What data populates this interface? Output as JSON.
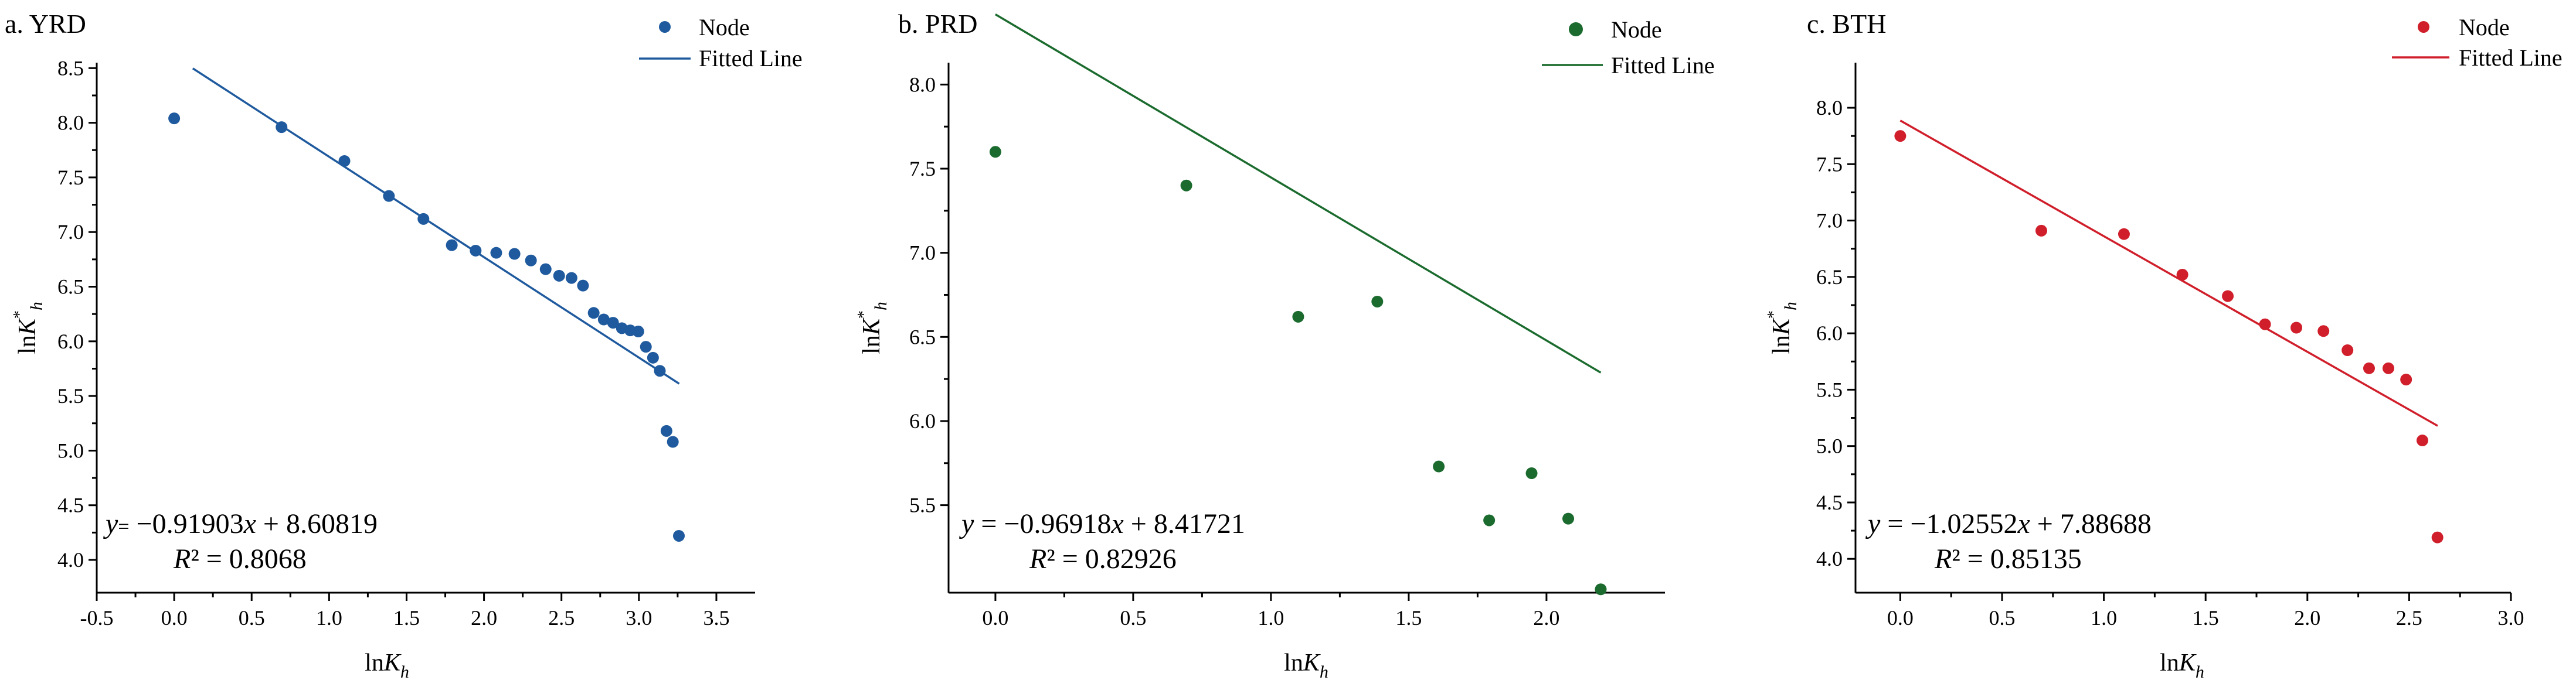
{
  "chart_data": [
    {
      "type": "scatter",
      "title": "a. YRD",
      "color": "#1f5a9e",
      "xlabel": "lnK_h",
      "ylabel": "lnK*_h",
      "xlim": [
        -0.5,
        3.75
      ],
      "ylim": [
        3.7,
        8.55
      ],
      "xticks": [
        "-0.5",
        "0.0",
        "0.5",
        "1.0",
        "1.5",
        "2.0",
        "2.5",
        "3.0",
        "3.5"
      ],
      "yticks": [
        "4.0",
        "4.5",
        "5.0",
        "5.5",
        "6.0",
        "6.5",
        "7.0",
        "7.5",
        "8.0",
        "8.5"
      ],
      "legend": {
        "node": "Node",
        "fitted": "Fitted Line"
      },
      "legend_position": "top-right",
      "series": [
        {
          "name": "Node",
          "x": [
            0.0,
            0.693,
            1.099,
            1.386,
            1.609,
            1.792,
            1.946,
            2.079,
            2.197,
            2.303,
            2.398,
            2.485,
            2.565,
            2.639,
            2.708,
            2.773,
            2.833,
            2.89,
            2.944,
            2.996,
            3.045,
            3.091,
            3.135,
            3.178,
            3.219,
            3.258
          ],
          "y": [
            8.04,
            7.96,
            7.65,
            7.33,
            7.12,
            6.88,
            6.83,
            6.81,
            6.8,
            6.74,
            6.66,
            6.6,
            6.58,
            6.51,
            6.26,
            6.2,
            6.17,
            6.12,
            6.1,
            6.09,
            5.95,
            5.85,
            5.73,
            5.18,
            5.08,
            4.22
          ]
        }
      ],
      "fit": {
        "slope": -0.91903,
        "intercept": 8.60819,
        "x_range": [
          0.12,
          3.26
        ]
      },
      "equation": {
        "y": "y",
        "eq": "=",
        "rhs_prefix": " −0.91903",
        "x": "x",
        "rhs_suffix": " + 8.60819",
        "r": "R",
        "r2": "² = 0.8068"
      }
    },
    {
      "type": "scatter",
      "title": "b. PRD",
      "color": "#1b6b2e",
      "xlabel": "lnK_h",
      "ylabel": "lnK*_h",
      "xlim": [
        -0.17,
        2.43
      ],
      "ylim": [
        4.98,
        8.13
      ],
      "xticks": [
        "0.0",
        "0.5",
        "1.0",
        "1.5",
        "2.0"
      ],
      "yticks": [
        "5.5",
        "6.0",
        "6.5",
        "7.0",
        "7.5",
        "8.0"
      ],
      "legend": {
        "node": "Node",
        "fitted": "Fitted Line"
      },
      "legend_position": "top-right",
      "series": [
        {
          "name": "Node",
          "x": [
            0.0,
            0.693,
            1.099,
            1.386,
            1.609,
            1.792,
            1.946,
            2.079,
            2.197
          ],
          "y": [
            7.6,
            7.4,
            6.62,
            6.71,
            5.73,
            5.41,
            5.69,
            5.42,
            5.0
          ]
        }
      ],
      "fit": {
        "slope": -0.96918,
        "intercept": 8.41721,
        "x_range": [
          0.0,
          2.197
        ]
      },
      "equation": {
        "y": "y",
        "eq": " =",
        "rhs_prefix": " −0.96918",
        "x": "x",
        "rhs_suffix": " + 8.41721",
        "r": "R",
        "r2": "² = 0.82926"
      }
    },
    {
      "type": "scatter",
      "title": "c. BTH",
      "color": "#d01f2b",
      "xlabel": "lnK_h",
      "ylabel": "lnK*_h",
      "xlim": [
        -0.22,
        3.0
      ],
      "ylim": [
        3.7,
        8.4
      ],
      "xticks": [
        "0.0",
        "0.5",
        "1.0",
        "1.5",
        "2.0",
        "2.5",
        "3.0"
      ],
      "yticks": [
        "4.0",
        "4.5",
        "5.0",
        "5.5",
        "6.0",
        "6.5",
        "7.0",
        "7.5",
        "8.0"
      ],
      "legend": {
        "node": "Node",
        "fitted": "Fitted Line"
      },
      "legend_position": "top-right",
      "series": [
        {
          "name": "Node",
          "x": [
            0.0,
            0.693,
            1.099,
            1.386,
            1.609,
            1.792,
            1.946,
            2.079,
            2.197,
            2.303,
            2.398,
            2.485,
            2.565,
            2.639
          ],
          "y": [
            7.75,
            6.91,
            6.88,
            6.52,
            6.33,
            6.08,
            6.05,
            6.02,
            5.85,
            5.69,
            5.69,
            5.59,
            5.05,
            4.19
          ]
        }
      ],
      "fit": {
        "slope": -1.02552,
        "intercept": 7.88688,
        "x_range": [
          0.0,
          2.64
        ]
      },
      "equation": {
        "y": "y",
        "eq": " =",
        "rhs_prefix": " −1.02552",
        "x": "x",
        "rhs_suffix": " + 7.88688",
        "r": "R",
        "r2": "² = 0.85135"
      }
    }
  ]
}
